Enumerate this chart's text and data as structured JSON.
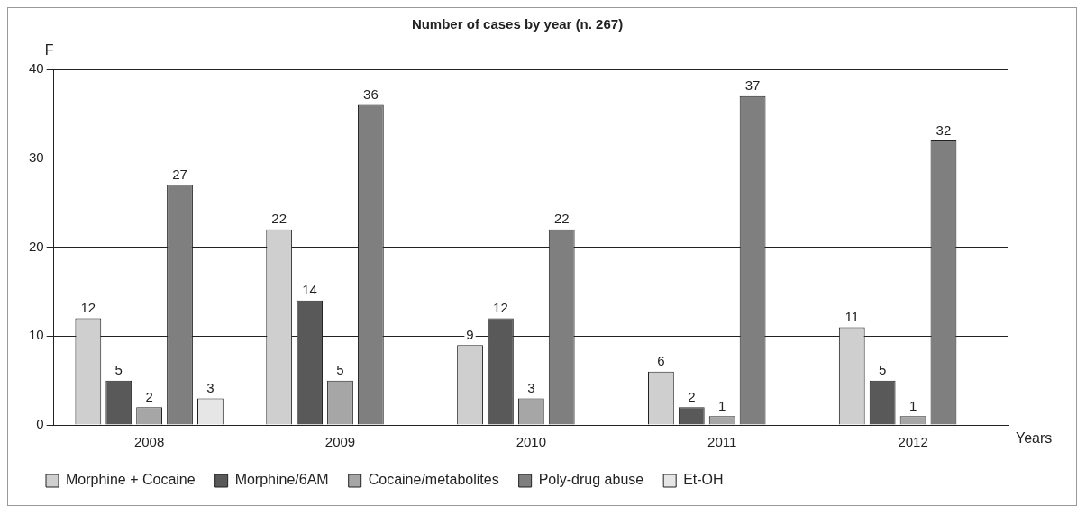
{
  "chart_data": {
    "type": "bar",
    "title": "Number of cases by year (n. 267)",
    "xlabel": "Years",
    "ylabel": "F",
    "categories": [
      "2008",
      "2009",
      "2010",
      "2011",
      "2012"
    ],
    "series": [
      {
        "name": "Morphine + Cocaine",
        "color": "#cfcfcf",
        "values": [
          12,
          22,
          9,
          6,
          11
        ]
      },
      {
        "name": "Morphine/6AM",
        "color": "#595959",
        "values": [
          5,
          14,
          12,
          2,
          5
        ]
      },
      {
        "name": "Cocaine/metabolites",
        "color": "#a6a6a6",
        "values": [
          2,
          5,
          3,
          1,
          1
        ]
      },
      {
        "name": "Poly-drug abuse",
        "color": "#7f7f7f",
        "values": [
          27,
          36,
          22,
          37,
          32
        ]
      },
      {
        "name": "Et-OH",
        "color": "#e6e6e6",
        "values": [
          3,
          null,
          null,
          null,
          null
        ]
      }
    ],
    "ylim": [
      0,
      40
    ],
    "yticks": [
      0,
      10,
      20,
      30,
      40
    ],
    "grid": "y",
    "legend": "bottom",
    "data_labels": true
  }
}
